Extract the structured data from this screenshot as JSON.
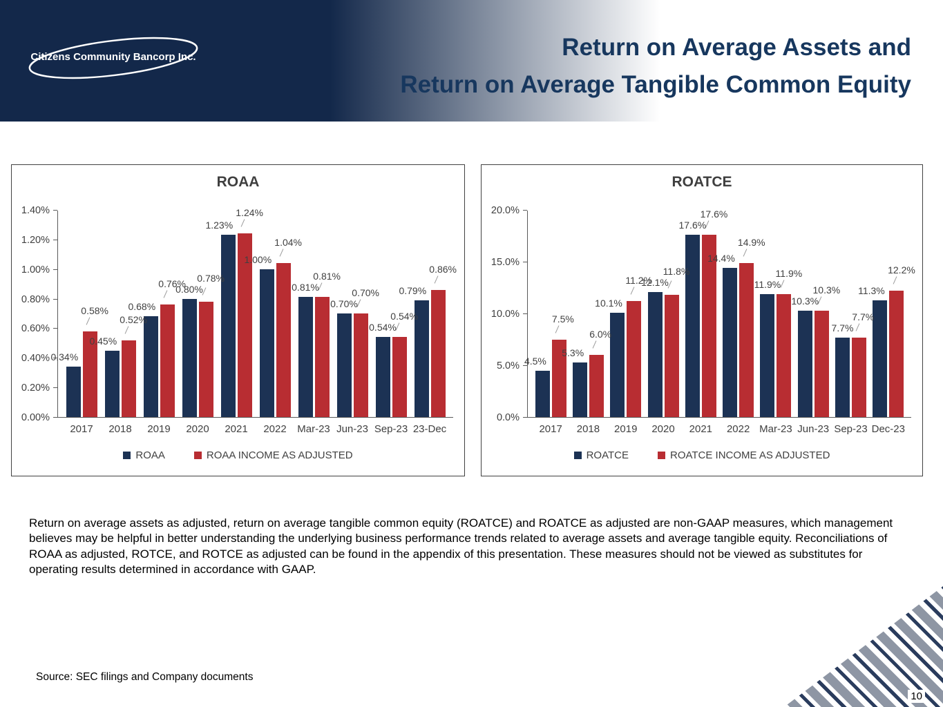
{
  "header": {
    "logo_text": "Citizens Community Bancorp Inc.",
    "title_line1": "Return on Average Assets and",
    "title_line2": "Return on Average Tangible Common Equity"
  },
  "theme": {
    "navy": "#1c3254",
    "red": "#b82d32",
    "title_text": "#17375e"
  },
  "chart_data": [
    {
      "type": "bar",
      "title": "ROAA",
      "categories": [
        "2017",
        "2018",
        "2019",
        "2020",
        "2021",
        "2022",
        "Mar-23",
        "Jun-23",
        "Sep-23",
        "23-Dec"
      ],
      "series": [
        {
          "name": "ROAA",
          "color": "#1c3254",
          "values": [
            0.34,
            0.45,
            0.68,
            0.8,
            1.23,
            1.0,
            0.81,
            0.7,
            0.54,
            0.79
          ]
        },
        {
          "name": "ROAA INCOME AS ADJUSTED",
          "color": "#b82d32",
          "values": [
            0.58,
            0.52,
            0.76,
            0.78,
            1.24,
            1.04,
            0.81,
            0.7,
            0.54,
            0.86
          ]
        }
      ],
      "value_decimals": 2,
      "value_suffix": "%",
      "ylim": [
        0,
        1.4
      ],
      "ytick_labels": [
        "0.00%",
        "0.20%",
        "0.40%",
        "0.60%",
        "0.80%",
        "1.00%",
        "1.20%",
        "1.40%"
      ],
      "grid": false,
      "legend_position": "bottom"
    },
    {
      "type": "bar",
      "title": "ROATCE",
      "categories": [
        "2017",
        "2018",
        "2019",
        "2020",
        "2021",
        "2022",
        "Mar-23",
        "Jun-23",
        "Sep-23",
        "Dec-23"
      ],
      "series": [
        {
          "name": "ROATCE",
          "color": "#1c3254",
          "values": [
            4.5,
            5.3,
            10.1,
            12.1,
            17.6,
            14.4,
            11.9,
            10.3,
            7.7,
            11.3
          ]
        },
        {
          "name": "ROATCE INCOME AS ADJUSTED",
          "color": "#b82d32",
          "values": [
            7.5,
            6.0,
            11.2,
            11.8,
            17.6,
            14.9,
            11.9,
            10.3,
            7.7,
            12.2
          ]
        }
      ],
      "value_decimals": 1,
      "value_suffix": "%",
      "ylim": [
        0,
        20
      ],
      "ytick_labels": [
        "0.0%",
        "5.0%",
        "10.0%",
        "15.0%",
        "20.0%"
      ],
      "grid": false,
      "legend_position": "bottom"
    }
  ],
  "body_text": "Return on average assets as adjusted, return on average tangible common equity (ROATCE) and ROATCE as adjusted are non-GAAP measures, which management believes may be helpful in better understanding the underlying business performance trends related to average assets and average tangible equity. Reconciliations of ROAA as adjusted, ROTCE, and ROTCE as adjusted can be found in the appendix of this presentation. These measures should not be viewed as substitutes for operating results determined in accordance with GAAP.",
  "footer": {
    "source": "Source: SEC filings and Company documents",
    "page_number": "10"
  }
}
